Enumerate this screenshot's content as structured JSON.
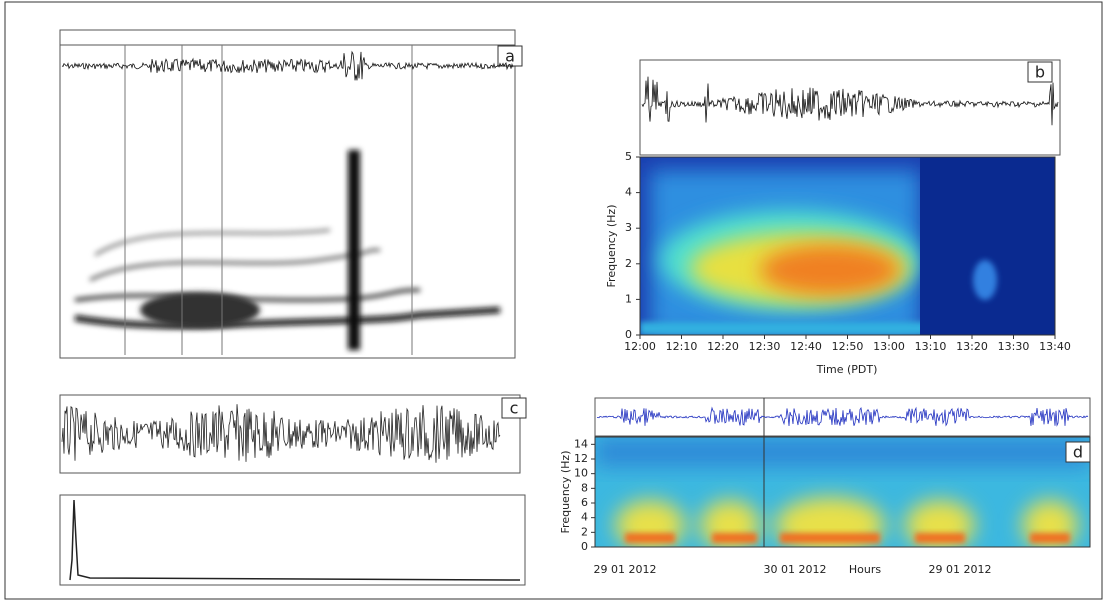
{
  "panels": {
    "a": {
      "label": "a"
    },
    "b": {
      "label": "b",
      "y_axis_label": "Frequency (Hz)",
      "x_axis_label": "Time (PDT)",
      "ylim": [
        0,
        5
      ],
      "yticks": [
        0,
        1,
        2,
        3,
        4,
        5
      ],
      "xticks": [
        "12:00",
        "12:10",
        "12:20",
        "12:30",
        "12:40",
        "12:50",
        "13:00",
        "13:10",
        "13:20",
        "13:30",
        "13:40"
      ]
    },
    "c": {
      "label": "c"
    },
    "d": {
      "label": "d",
      "y_axis_label": "Frequency (Hz)",
      "ylim": [
        0,
        15
      ],
      "yticks": [
        0,
        2,
        4,
        6,
        8,
        10,
        12,
        14
      ],
      "x_labels": [
        "29 01 2012",
        "30 01 2012",
        "Hours",
        "29 01 2012"
      ]
    }
  }
}
